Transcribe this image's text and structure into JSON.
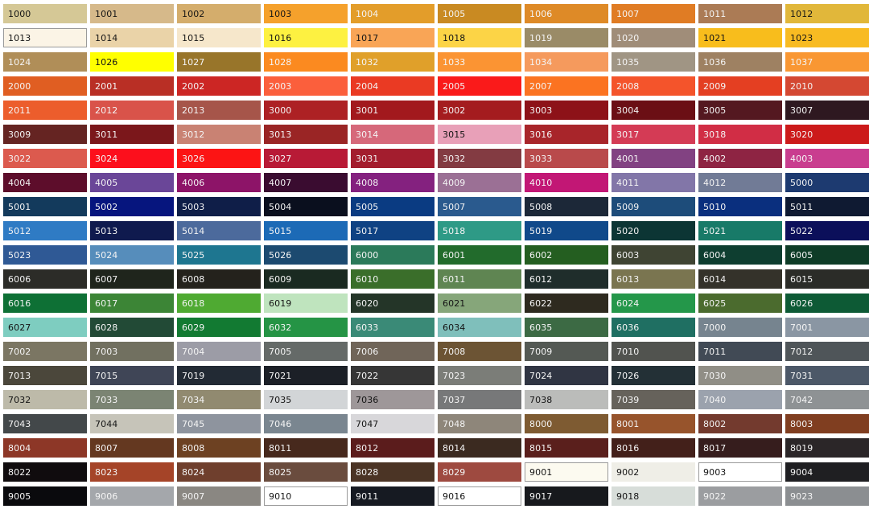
{
  "swatches": [
    [
      "1000",
      "#d5c896",
      "d"
    ],
    [
      "1001",
      "#d6b98a",
      "d"
    ],
    [
      "1002",
      "#d4ad6c",
      "d"
    ],
    [
      "1003",
      "#f5a12c",
      "d"
    ],
    [
      "1004",
      "#e39d2a",
      "l"
    ],
    [
      "1005",
      "#c98a22",
      "l"
    ],
    [
      "1006",
      "#de8a27",
      "l"
    ],
    [
      "1007",
      "#e07c24",
      "l"
    ],
    [
      "1011",
      "#ab7b55",
      "l"
    ],
    [
      "1012",
      "#e1b73a",
      "d"
    ],
    [
      "1013",
      "#fbf4e6",
      "d",
      "b"
    ],
    [
      "1014",
      "#ead3a8",
      "d"
    ],
    [
      "1015",
      "#f6e7cb",
      "d"
    ],
    [
      "1016",
      "#fdf141",
      "d"
    ],
    [
      "1017",
      "#f9a556",
      "d"
    ],
    [
      "1018",
      "#fcd446",
      "d"
    ],
    [
      "1019",
      "#9a8b67",
      "l"
    ],
    [
      "1020",
      "#a08d79",
      "l"
    ],
    [
      "1021",
      "#f8bd1c",
      "d"
    ],
    [
      "1023",
      "#f8bb22",
      "d"
    ],
    [
      "1024",
      "#b08e58",
      "l"
    ],
    [
      "1026",
      "#ffff00",
      "d"
    ],
    [
      "1027",
      "#98752a",
      "l"
    ],
    [
      "1028",
      "#fb8a20",
      "l"
    ],
    [
      "1032",
      "#e0a02a",
      "l"
    ],
    [
      "1033",
      "#fb9433",
      "l"
    ],
    [
      "1034",
      "#f59a5d",
      "l"
    ],
    [
      "1035",
      "#a09584",
      "l"
    ],
    [
      "1036",
      "#9e8162",
      "l"
    ],
    [
      "1037",
      "#f99733",
      "l"
    ],
    [
      "2000",
      "#e05e22",
      "l"
    ],
    [
      "2001",
      "#b92f25",
      "l"
    ],
    [
      "2002",
      "#cc2624",
      "l"
    ],
    [
      "2003",
      "#fb5f3c",
      "l"
    ],
    [
      "2004",
      "#ea3a23",
      "l"
    ],
    [
      "2005",
      "#fa1a1a",
      "l"
    ],
    [
      "2007",
      "#fb7321",
      "l"
    ],
    [
      "2008",
      "#f4542b",
      "l"
    ],
    [
      "2009",
      "#e43f22",
      "l"
    ],
    [
      "2010",
      "#d44832",
      "l"
    ],
    [
      "2011",
      "#ec5d2c",
      "l"
    ],
    [
      "2012",
      "#d9534a",
      "l"
    ],
    [
      "2013",
      "#a6554a",
      "l"
    ],
    [
      "3000",
      "#ad2124",
      "l"
    ],
    [
      "3001",
      "#a2191d",
      "l"
    ],
    [
      "3002",
      "#a41c1f",
      "l"
    ],
    [
      "3003",
      "#8d1218",
      "l"
    ],
    [
      "3004",
      "#6b0f15",
      "l"
    ],
    [
      "3005",
      "#541820",
      "l"
    ],
    [
      "3007",
      "#2e1820",
      "l"
    ],
    [
      "3009",
      "#652422",
      "l"
    ],
    [
      "3011",
      "#7b171b",
      "l"
    ],
    [
      "3012",
      "#c98273",
      "l"
    ],
    [
      "3013",
      "#9a2525",
      "l"
    ],
    [
      "3014",
      "#d6687a",
      "l"
    ],
    [
      "3015",
      "#e8a0b8",
      "d"
    ],
    [
      "3016",
      "#a8252a",
      "l"
    ],
    [
      "3017",
      "#d43b55",
      "l"
    ],
    [
      "3018",
      "#d12d45",
      "l"
    ],
    [
      "3020",
      "#cc1a1a",
      "l"
    ],
    [
      "3022",
      "#dc5a4e",
      "l"
    ],
    [
      "3024",
      "#fc0f1c",
      "l"
    ],
    [
      "3026",
      "#fc1414",
      "l"
    ],
    [
      "3027",
      "#b81a36",
      "l"
    ],
    [
      "3031",
      "#a31d2e",
      "l"
    ],
    [
      "3032",
      "#833b42",
      "l"
    ],
    [
      "3033",
      "#b94a4b",
      "l"
    ],
    [
      "4001",
      "#824282",
      "l"
    ],
    [
      "4002",
      "#8e2443",
      "l"
    ],
    [
      "4003",
      "#c93d8f",
      "l"
    ],
    [
      "4004",
      "#5d0d2b",
      "l"
    ],
    [
      "4005",
      "#6a4698",
      "l"
    ],
    [
      "4006",
      "#8d1468",
      "l"
    ],
    [
      "4007",
      "#3a0c30",
      "l"
    ],
    [
      "4008",
      "#84217f",
      "l"
    ],
    [
      "4009",
      "#9b7095",
      "l"
    ],
    [
      "4010",
      "#c21775",
      "l"
    ],
    [
      "4011",
      "#8276a8",
      "l"
    ],
    [
      "4012",
      "#717b96",
      "l"
    ],
    [
      "5000",
      "#1d3a70",
      "l"
    ],
    [
      "5001",
      "#133a5c",
      "l"
    ],
    [
      "5002",
      "#06157e",
      "l"
    ],
    [
      "5003",
      "#0f1e48",
      "l"
    ],
    [
      "5004",
      "#0a0f1e",
      "l"
    ],
    [
      "5005",
      "#0a3b82",
      "l"
    ],
    [
      "5007",
      "#2a5a8e",
      "l"
    ],
    [
      "5008",
      "#1c2838",
      "l"
    ],
    [
      "5009",
      "#1d4c7a",
      "l"
    ],
    [
      "5010",
      "#0a2f7e",
      "l"
    ],
    [
      "5011",
      "#0f1a32",
      "l"
    ],
    [
      "5012",
      "#2f7bc4",
      "l"
    ],
    [
      "5013",
      "#0f1a4e",
      "l"
    ],
    [
      "5014",
      "#4c6a9c",
      "l"
    ],
    [
      "5015",
      "#1c6ab6",
      "l"
    ],
    [
      "5017",
      "#0f4283",
      "l"
    ],
    [
      "5018",
      "#2e9a86",
      "l"
    ],
    [
      "5019",
      "#10498a",
      "l"
    ],
    [
      "5020",
      "#0c3534",
      "l"
    ],
    [
      "5021",
      "#187a68",
      "l"
    ],
    [
      "5022",
      "#0b0f5a",
      "l"
    ],
    [
      "5023",
      "#2f5995",
      "l"
    ],
    [
      "5024",
      "#568dbb",
      "l"
    ],
    [
      "5025",
      "#1e7690",
      "l"
    ],
    [
      "5026",
      "#1c4a70",
      "l"
    ],
    [
      "6000",
      "#2b7a5a",
      "l"
    ],
    [
      "6001",
      "#226b2c",
      "l"
    ],
    [
      "6002",
      "#245e20",
      "l"
    ],
    [
      "6003",
      "#3f4433",
      "l"
    ],
    [
      "6004",
      "#0e3e30",
      "l"
    ],
    [
      "6005",
      "#0e3c27",
      "l"
    ],
    [
      "6006",
      "#2c2c28",
      "l"
    ],
    [
      "6007",
      "#1f251c",
      "l"
    ],
    [
      "6008",
      "#24221c",
      "l"
    ],
    [
      "6009",
      "#1a2a21",
      "l"
    ],
    [
      "6010",
      "#3a6e2a",
      "l"
    ],
    [
      "6011",
      "#5f8552",
      "l"
    ],
    [
      "6012",
      "#1f2d2b",
      "l"
    ],
    [
      "6013",
      "#7a7550",
      "l"
    ],
    [
      "6014",
      "#34322a",
      "l"
    ],
    [
      "6015",
      "#2b2c28",
      "l"
    ],
    [
      "6016",
      "#0e7035",
      "l"
    ],
    [
      "6017",
      "#3c8536",
      "l"
    ],
    [
      "6018",
      "#4faa32",
      "l"
    ],
    [
      "6019",
      "#bfe4be",
      "d"
    ],
    [
      "6020",
      "#243528",
      "l"
    ],
    [
      "6021",
      "#86a67a",
      "d"
    ],
    [
      "6022",
      "#2e2a1f",
      "l"
    ],
    [
      "6024",
      "#24974a",
      "l"
    ],
    [
      "6025",
      "#4b6b2e",
      "l"
    ],
    [
      "6026",
      "#0d5a35",
      "l"
    ],
    [
      "6027",
      "#7ecdc0",
      "d"
    ],
    [
      "6028",
      "#224a36",
      "l"
    ],
    [
      "6029",
      "#127a32",
      "l"
    ],
    [
      "6032",
      "#259445",
      "l"
    ],
    [
      "6033",
      "#3a8a77",
      "l"
    ],
    [
      "6034",
      "#7fbfbb",
      "d"
    ],
    [
      "6035",
      "#3c6a44",
      "l"
    ],
    [
      "6036",
      "#1f6f62",
      "l"
    ],
    [
      "7000",
      "#76848f",
      "l"
    ],
    [
      "7001",
      "#8a96a3",
      "l"
    ],
    [
      "7002",
      "#7b7663",
      "l"
    ],
    [
      "7003",
      "#717060",
      "l"
    ],
    [
      "7004",
      "#9c9ca6",
      "l"
    ],
    [
      "7005",
      "#656a68",
      "l"
    ],
    [
      "7006",
      "#706559",
      "l"
    ],
    [
      "7008",
      "#6c5434",
      "l"
    ],
    [
      "7009",
      "#545954",
      "l"
    ],
    [
      "7010",
      "#51534f",
      "l"
    ],
    [
      "7011",
      "#414a55",
      "l"
    ],
    [
      "7012",
      "#4f5559",
      "l"
    ],
    [
      "7013",
      "#4b473b",
      "l"
    ],
    [
      "7015",
      "#3f4556",
      "l"
    ],
    [
      "7019",
      "#222a34",
      "l"
    ],
    [
      "7021",
      "#1c2027",
      "l"
    ],
    [
      "7022",
      "#363636",
      "l"
    ],
    [
      "7023",
      "#7b7d78",
      "l"
    ],
    [
      "7024",
      "#303543",
      "l"
    ],
    [
      "7026",
      "#233036",
      "l"
    ],
    [
      "7030",
      "#908e86",
      "l"
    ],
    [
      "7031",
      "#4c5868",
      "l"
    ],
    [
      "7032",
      "#bdbaa9",
      "d"
    ],
    [
      "7033",
      "#7b8473",
      "l"
    ],
    [
      "7034",
      "#918a70",
      "l"
    ],
    [
      "7035",
      "#d2d5d7",
      "d"
    ],
    [
      "7036",
      "#9e9799",
      "d"
    ],
    [
      "7037",
      "#777879",
      "l"
    ],
    [
      "7038",
      "#bbbcba",
      "d"
    ],
    [
      "7039",
      "#66625b",
      "l"
    ],
    [
      "7040",
      "#9ba2ad",
      "l"
    ],
    [
      "7042",
      "#8e9294",
      "l"
    ],
    [
      "7043",
      "#43484a",
      "l"
    ],
    [
      "7044",
      "#c6c4b9",
      "d"
    ],
    [
      "7045",
      "#8e949e",
      "l"
    ],
    [
      "7046",
      "#7a8690",
      "l"
    ],
    [
      "7047",
      "#d8d7da",
      "d"
    ],
    [
      "7048",
      "#8e867a",
      "l"
    ],
    [
      "8000",
      "#7e5b32",
      "l"
    ],
    [
      "8001",
      "#97542c",
      "l"
    ],
    [
      "8002",
      "#733a2e",
      "l"
    ],
    [
      "8003",
      "#803e20",
      "l"
    ],
    [
      "8004",
      "#8d3727",
      "l"
    ],
    [
      "8007",
      "#643820",
      "l"
    ],
    [
      "8008",
      "#6d4122",
      "l"
    ],
    [
      "8011",
      "#47291d",
      "l"
    ],
    [
      "8012",
      "#5b1c1c",
      "l"
    ],
    [
      "8014",
      "#3b2a20",
      "l"
    ],
    [
      "8015",
      "#5a1f1c",
      "l"
    ],
    [
      "8016",
      "#43201a",
      "l"
    ],
    [
      "8017",
      "#361d1d",
      "l"
    ],
    [
      "8019",
      "#2b2628",
      "l"
    ],
    [
      "8022",
      "#100c0e",
      "l"
    ],
    [
      "8023",
      "#a54428",
      "l"
    ],
    [
      "8024",
      "#6f3f2d",
      "l"
    ],
    [
      "8025",
      "#6a4c3e",
      "l"
    ],
    [
      "8028",
      "#4b3425",
      "l"
    ],
    [
      "8029",
      "#9e4a40",
      "l"
    ],
    [
      "9001",
      "#fcfaf0",
      "d",
      "b"
    ],
    [
      "9002",
      "#efeee7",
      "d"
    ],
    [
      "9003",
      "#ffffff",
      "d",
      "b"
    ],
    [
      "9004",
      "#1f1f22",
      "l"
    ],
    [
      "9005",
      "#0a0a0d",
      "l"
    ],
    [
      "9006",
      "#a4a7ab",
      "l"
    ],
    [
      "9007",
      "#8a8782",
      "l"
    ],
    [
      "9010",
      "#ffffff",
      "d",
      "b"
    ],
    [
      "9011",
      "#161a22",
      "l"
    ],
    [
      "9016",
      "#ffffff",
      "d",
      "b"
    ],
    [
      "9017",
      "#17191d",
      "l"
    ],
    [
      "9018",
      "#d7ddd9",
      "d"
    ],
    [
      "9022",
      "#9b9da0",
      "l"
    ],
    [
      "9023",
      "#8b8e91",
      "l"
    ]
  ]
}
